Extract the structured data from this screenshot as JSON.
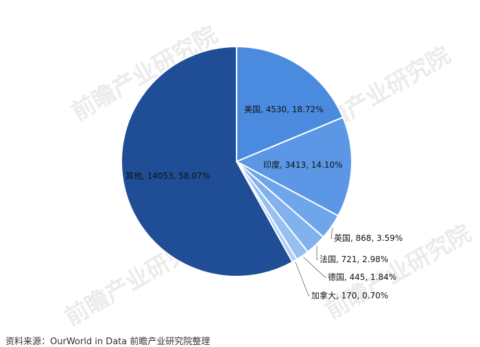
{
  "chart_data": {
    "type": "pie",
    "slices": [
      {
        "label": "美国",
        "value": 4530,
        "percent": "18.72%",
        "color": "#4a8be0"
      },
      {
        "label": "印度",
        "value": 3413,
        "percent": "14.10%",
        "color": "#5b97e4"
      },
      {
        "label": "英国",
        "value": 868,
        "percent": "3.59%",
        "color": "#6fa5ea"
      },
      {
        "label": "法国",
        "value": 721,
        "percent": "2.98%",
        "color": "#82b2ee"
      },
      {
        "label": "德国",
        "value": 445,
        "percent": "1.84%",
        "color": "#97c0f1"
      },
      {
        "label": "加拿大",
        "value": 170,
        "percent": "0.70%",
        "color": "#aecff5"
      },
      {
        "label": "其他",
        "value": 14053,
        "percent": "58.07%",
        "color": "#1f4e96"
      }
    ],
    "data_label_format": "{label}, {value}, {percent}"
  },
  "watermark": "前瞻产业研究院",
  "source_text": "资料来源：OurWorld in Data 前瞻产业研究院整理"
}
